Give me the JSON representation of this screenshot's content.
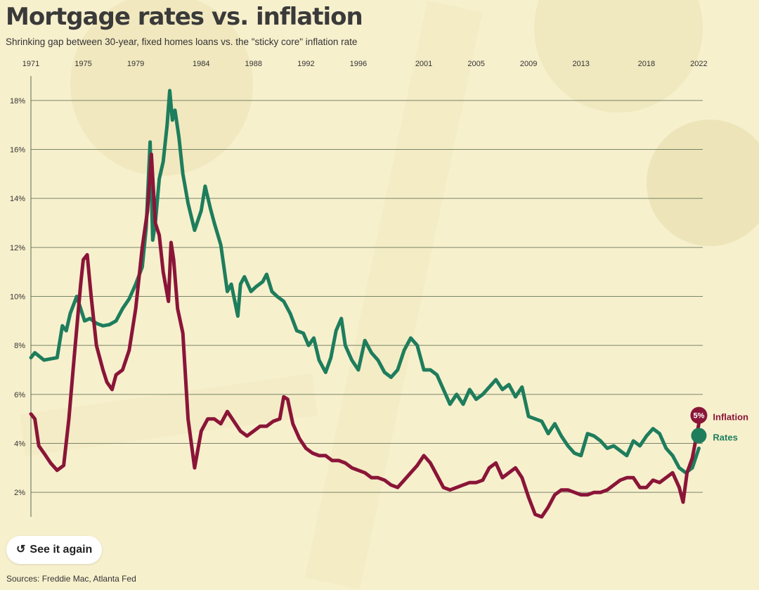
{
  "title": "Mortgage rates vs. inflation",
  "subtitle": "Shrinking gap between 30-year, fixed homes loans vs. the \"sticky core\" inflation rate",
  "replay_button": {
    "label": "See it again",
    "icon": "replay-icon"
  },
  "sources": "Sources: Freddie Mac, Atlanta Fed",
  "colors": {
    "background": "#f7f0cd",
    "rates": "#1e7d5c",
    "inflation": "#8a1538",
    "grid": "#5a6b50"
  },
  "chart_data": {
    "type": "line",
    "xlabel": "",
    "ylabel": "",
    "xlim": [
      1971,
      2022.3
    ],
    "ylim": [
      1,
      19
    ],
    "grid": true,
    "x_ticks": [
      1971,
      1975,
      1979,
      1984,
      1988,
      1992,
      1996,
      2001,
      2005,
      2009,
      2013,
      2018,
      2022
    ],
    "x_tick_labels": [
      "1971",
      "1975",
      "1979",
      "1984",
      "1988",
      "1992",
      "1996",
      "2001",
      "2005",
      "2009",
      "2013",
      "2018",
      "2022"
    ],
    "y_ticks": [
      2,
      4,
      6,
      8,
      10,
      12,
      14,
      16,
      18
    ],
    "y_tick_labels": [
      "2%",
      "4%",
      "6%",
      "8%",
      "10%",
      "12%",
      "14%",
      "16%",
      "18%"
    ],
    "series": [
      {
        "name": "Rates",
        "color": "#1e7d5c",
        "x": [
          1971.0,
          1971.3,
          1972.0,
          1972.5,
          1973.0,
          1973.4,
          1973.7,
          1974.0,
          1974.5,
          1974.8,
          1975.1,
          1975.5,
          1976.0,
          1976.5,
          1977.0,
          1977.5,
          1978.0,
          1978.5,
          1979.0,
          1979.5,
          1979.8,
          1980.1,
          1980.3,
          1980.5,
          1980.8,
          1981.1,
          1981.4,
          1981.6,
          1981.8,
          1982.0,
          1982.3,
          1982.6,
          1983.0,
          1983.5,
          1984.0,
          1984.3,
          1984.7,
          1985.0,
          1985.5,
          1986.0,
          1986.3,
          1986.8,
          1987.0,
          1987.3,
          1987.8,
          1988.2,
          1988.7,
          1989.0,
          1989.4,
          1989.8,
          1990.3,
          1990.8,
          1991.3,
          1991.8,
          1992.2,
          1992.6,
          1993.0,
          1993.5,
          1993.9,
          1994.3,
          1994.7,
          1995.0,
          1995.5,
          1996.0,
          1996.5,
          1997.0,
          1997.5,
          1998.0,
          1998.5,
          1999.0,
          1999.5,
          2000.0,
          2000.5,
          2001.0,
          2001.5,
          2002.0,
          2002.5,
          2003.0,
          2003.5,
          2004.0,
          2004.5,
          2005.0,
          2005.5,
          2006.0,
          2006.5,
          2007.0,
          2007.5,
          2008.0,
          2008.5,
          2009.0,
          2009.5,
          2010.0,
          2010.5,
          2011.0,
          2011.5,
          2012.0,
          2012.5,
          2013.0,
          2013.5,
          2014.0,
          2014.5,
          2015.0,
          2015.5,
          2016.0,
          2016.5,
          2017.0,
          2017.5,
          2018.0,
          2018.5,
          2019.0,
          2019.5,
          2020.0,
          2020.5,
          2021.0,
          2021.5,
          2022.0
        ],
        "values": [
          7.5,
          7.7,
          7.4,
          7.45,
          7.5,
          8.8,
          8.6,
          9.3,
          10.0,
          9.5,
          9.0,
          9.1,
          8.9,
          8.8,
          8.85,
          9.0,
          9.5,
          9.9,
          10.5,
          11.2,
          12.8,
          16.3,
          12.3,
          13.0,
          14.8,
          15.5,
          17.0,
          18.4,
          17.2,
          17.6,
          16.5,
          15.0,
          13.8,
          12.7,
          13.5,
          14.5,
          13.6,
          13.0,
          12.1,
          10.2,
          10.5,
          9.2,
          10.5,
          10.8,
          10.2,
          10.4,
          10.6,
          10.9,
          10.2,
          10.0,
          9.8,
          9.3,
          8.6,
          8.5,
          8.0,
          8.3,
          7.4,
          6.9,
          7.5,
          8.6,
          9.1,
          8.0,
          7.4,
          7.0,
          8.2,
          7.7,
          7.4,
          6.9,
          6.7,
          7.0,
          7.8,
          8.3,
          8.0,
          7.0,
          7.0,
          6.8,
          6.2,
          5.6,
          6.0,
          5.6,
          6.2,
          5.8,
          6.0,
          6.3,
          6.6,
          6.2,
          6.4,
          5.9,
          6.3,
          5.1,
          5.0,
          4.9,
          4.4,
          4.8,
          4.3,
          3.9,
          3.6,
          3.5,
          4.4,
          4.3,
          4.1,
          3.8,
          3.9,
          3.7,
          3.5,
          4.1,
          3.9,
          4.3,
          4.6,
          4.4,
          3.8,
          3.5,
          3.0,
          2.8,
          3.0,
          3.8
        ]
      },
      {
        "name": "Inflation",
        "color": "#8a1538",
        "x": [
          1971.0,
          1971.3,
          1971.6,
          1972.0,
          1972.5,
          1973.0,
          1973.5,
          1973.9,
          1974.3,
          1974.8,
          1975.0,
          1975.3,
          1975.6,
          1976.0,
          1976.5,
          1976.8,
          1977.2,
          1977.5,
          1978.0,
          1978.5,
          1979.0,
          1979.5,
          1979.9,
          1980.2,
          1980.5,
          1980.8,
          1981.1,
          1981.5,
          1981.7,
          1981.9,
          1982.2,
          1982.6,
          1983.0,
          1983.5,
          1984.0,
          1984.5,
          1985.0,
          1985.5,
          1986.0,
          1986.5,
          1987.0,
          1987.5,
          1988.0,
          1988.5,
          1989.0,
          1989.5,
          1990.0,
          1990.3,
          1990.6,
          1991.0,
          1991.5,
          1992.0,
          1992.5,
          1993.0,
          1993.5,
          1994.0,
          1994.5,
          1995.0,
          1995.5,
          1996.0,
          1996.5,
          1997.0,
          1997.5,
          1998.0,
          1998.5,
          1999.0,
          1999.5,
          2000.0,
          2000.5,
          2001.0,
          2001.5,
          2002.0,
          2002.5,
          2003.0,
          2003.5,
          2004.0,
          2004.5,
          2005.0,
          2005.5,
          2006.0,
          2006.5,
          2007.0,
          2007.5,
          2008.0,
          2008.5,
          2009.0,
          2009.5,
          2010.0,
          2010.5,
          2011.0,
          2011.5,
          2012.0,
          2012.5,
          2013.0,
          2013.5,
          2014.0,
          2014.5,
          2015.0,
          2015.5,
          2016.0,
          2016.5,
          2017.0,
          2017.5,
          2018.0,
          2018.5,
          2019.0,
          2019.5,
          2020.0,
          2020.5,
          2020.8,
          2021.1,
          2021.5,
          2022.0
        ],
        "values": [
          5.2,
          5.0,
          3.9,
          3.6,
          3.2,
          2.9,
          3.1,
          5.0,
          7.5,
          10.5,
          11.5,
          11.7,
          10.0,
          8.0,
          7.0,
          6.5,
          6.2,
          6.8,
          7.0,
          7.8,
          9.5,
          12.0,
          13.5,
          15.8,
          13.0,
          12.5,
          11.0,
          9.8,
          12.2,
          11.5,
          9.5,
          8.5,
          5.0,
          3.0,
          4.5,
          5.0,
          5.0,
          4.8,
          5.3,
          4.9,
          4.5,
          4.3,
          4.5,
          4.7,
          4.7,
          4.9,
          5.0,
          5.9,
          5.8,
          4.8,
          4.2,
          3.8,
          3.6,
          3.5,
          3.5,
          3.3,
          3.3,
          3.2,
          3.0,
          2.9,
          2.8,
          2.6,
          2.6,
          2.5,
          2.3,
          2.2,
          2.5,
          2.8,
          3.1,
          3.5,
          3.2,
          2.7,
          2.2,
          2.1,
          2.2,
          2.3,
          2.4,
          2.4,
          2.5,
          3.0,
          3.2,
          2.6,
          2.8,
          3.0,
          2.6,
          1.8,
          1.1,
          1.0,
          1.4,
          1.9,
          2.1,
          2.1,
          2.0,
          1.9,
          1.9,
          2.0,
          2.0,
          2.1,
          2.3,
          2.5,
          2.6,
          2.6,
          2.2,
          2.2,
          2.5,
          2.4,
          2.6,
          2.8,
          2.2,
          1.6,
          2.8,
          3.4,
          4.8
        ]
      }
    ],
    "end_badge": "5%"
  }
}
